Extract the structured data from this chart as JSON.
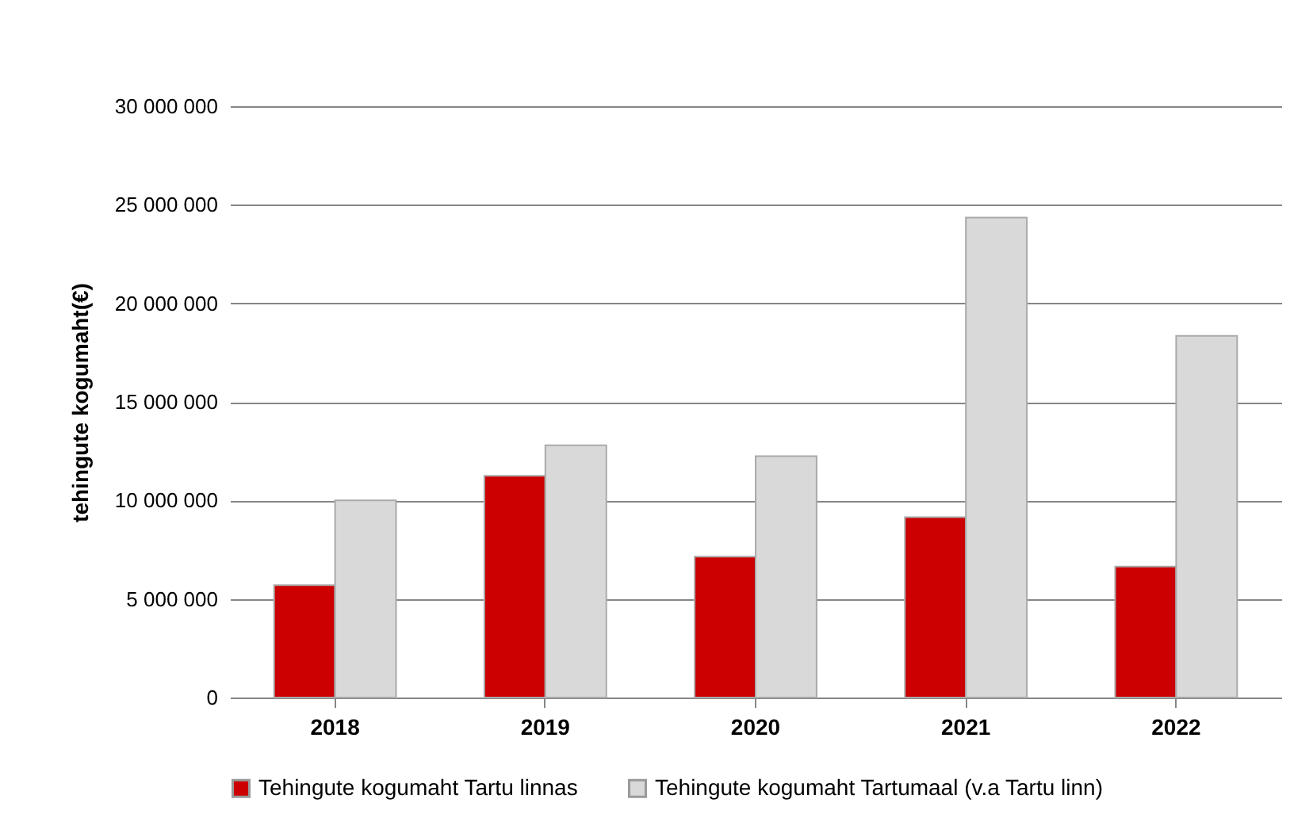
{
  "chart_data": {
    "type": "bar",
    "ylabel": "tehingute kogumaht(€)",
    "categories": [
      "2018",
      "2019",
      "2020",
      "2021",
      "2022"
    ],
    "series": [
      {
        "name": "Tehingute kogumaht Tartu linnas",
        "color": "#cc0000",
        "values": [
          5700000,
          11250000,
          7150000,
          9150000,
          6650000
        ]
      },
      {
        "name": "Tehingute kogumaht Tartumaal (v.a Tartu linn)",
        "color": "#d9d9d9",
        "values": [
          10000000,
          12800000,
          12250000,
          24350000,
          18350000
        ]
      }
    ],
    "ylim": [
      0,
      30000000
    ],
    "yticks": [
      0,
      5000000,
      10000000,
      15000000,
      20000000,
      25000000,
      30000000
    ],
    "grid": "y",
    "legend": "bottom"
  }
}
